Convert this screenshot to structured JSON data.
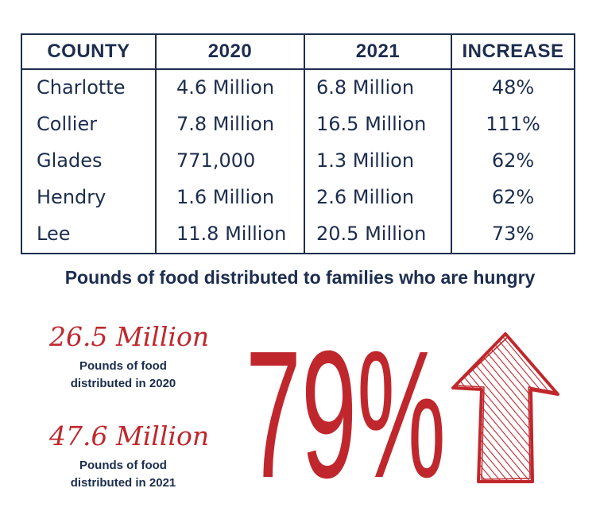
{
  "table": {
    "headers": [
      "COUNTY",
      "2020",
      "2021",
      "INCREASE"
    ],
    "rows": [
      [
        "Charlotte",
        "4.6 Million",
        "6.8 Million",
        "48%"
      ],
      [
        "Collier",
        "7.8 Million",
        "16.5 Million",
        "111%"
      ],
      [
        "Glades",
        "771,000",
        "1.3 Million",
        "62%"
      ],
      [
        "Hendry",
        "1.6 Million",
        "2.6 Million",
        "62%"
      ],
      [
        "Lee",
        "11.8 Million",
        "20.5 Million",
        "73%"
      ]
    ]
  },
  "caption": "Pounds of food distributed to families who are hungry",
  "stats": [
    {
      "value": "26.5 Million",
      "label_line1": "Pounds of food",
      "label_line2": "distributed in 2020"
    },
    {
      "value": "47.6 Million",
      "label_line1": "Pounds of food",
      "label_line2": "distributed in 2021"
    }
  ],
  "big_percent": "79%",
  "colors": {
    "navy": "#1c2d4f",
    "red": "#c0272d"
  },
  "icons": {
    "arrow": "up-arrow-icon"
  }
}
